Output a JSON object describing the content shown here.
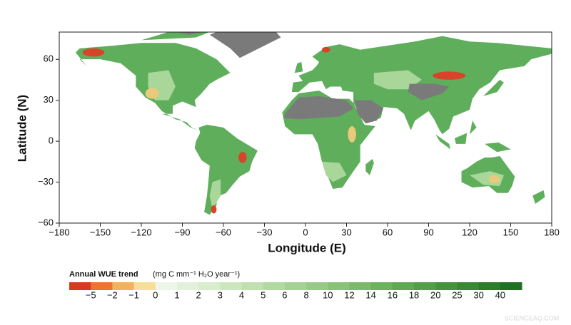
{
  "map": {
    "xlabel": "Longitude  (E)",
    "ylabel": "Latitude  (N)",
    "xlim": [
      -180,
      180
    ],
    "ylim": [
      -60,
      80
    ],
    "xticks": [
      {
        "value": -180,
        "label": "−180"
      },
      {
        "value": -150,
        "label": "−150"
      },
      {
        "value": -120,
        "label": "−120"
      },
      {
        "value": -90,
        "label": "−90"
      },
      {
        "value": -60,
        "label": "−60"
      },
      {
        "value": -30,
        "label": "−30"
      },
      0,
      30,
      60,
      90,
      120,
      150,
      180
    ],
    "yticks": [
      {
        "value": -60,
        "label": "−60"
      },
      {
        "value": -30,
        "label": "−30"
      },
      0,
      30,
      60
    ]
  },
  "colorbar": {
    "title": "Annual WUE trend",
    "units": "(mg C mm⁻¹ H₂O year⁻¹)",
    "colors": [
      "#d73a1e",
      "#e9762b",
      "#f3b25a",
      "#f7df98",
      "#eef6ea",
      "#e3f1dc",
      "#d8ecce",
      "#cce6c0",
      "#c0e0b2",
      "#b3d9a3",
      "#a5d294",
      "#97ca86",
      "#89c278",
      "#7bba6b",
      "#6db25e",
      "#60a952",
      "#529f47",
      "#45943d",
      "#388834",
      "#2b7c2b",
      "#1f6f24"
    ],
    "ticks": [
      {
        "value": -5,
        "label": "−5"
      },
      {
        "value": -2,
        "label": "−2"
      },
      {
        "value": -1,
        "label": "−1"
      },
      0,
      1,
      2,
      3,
      4,
      5,
      6,
      8,
      10,
      12,
      14,
      16,
      18,
      20,
      25,
      30,
      40
    ]
  },
  "watermark": "SCIENCEAQ.COM"
}
